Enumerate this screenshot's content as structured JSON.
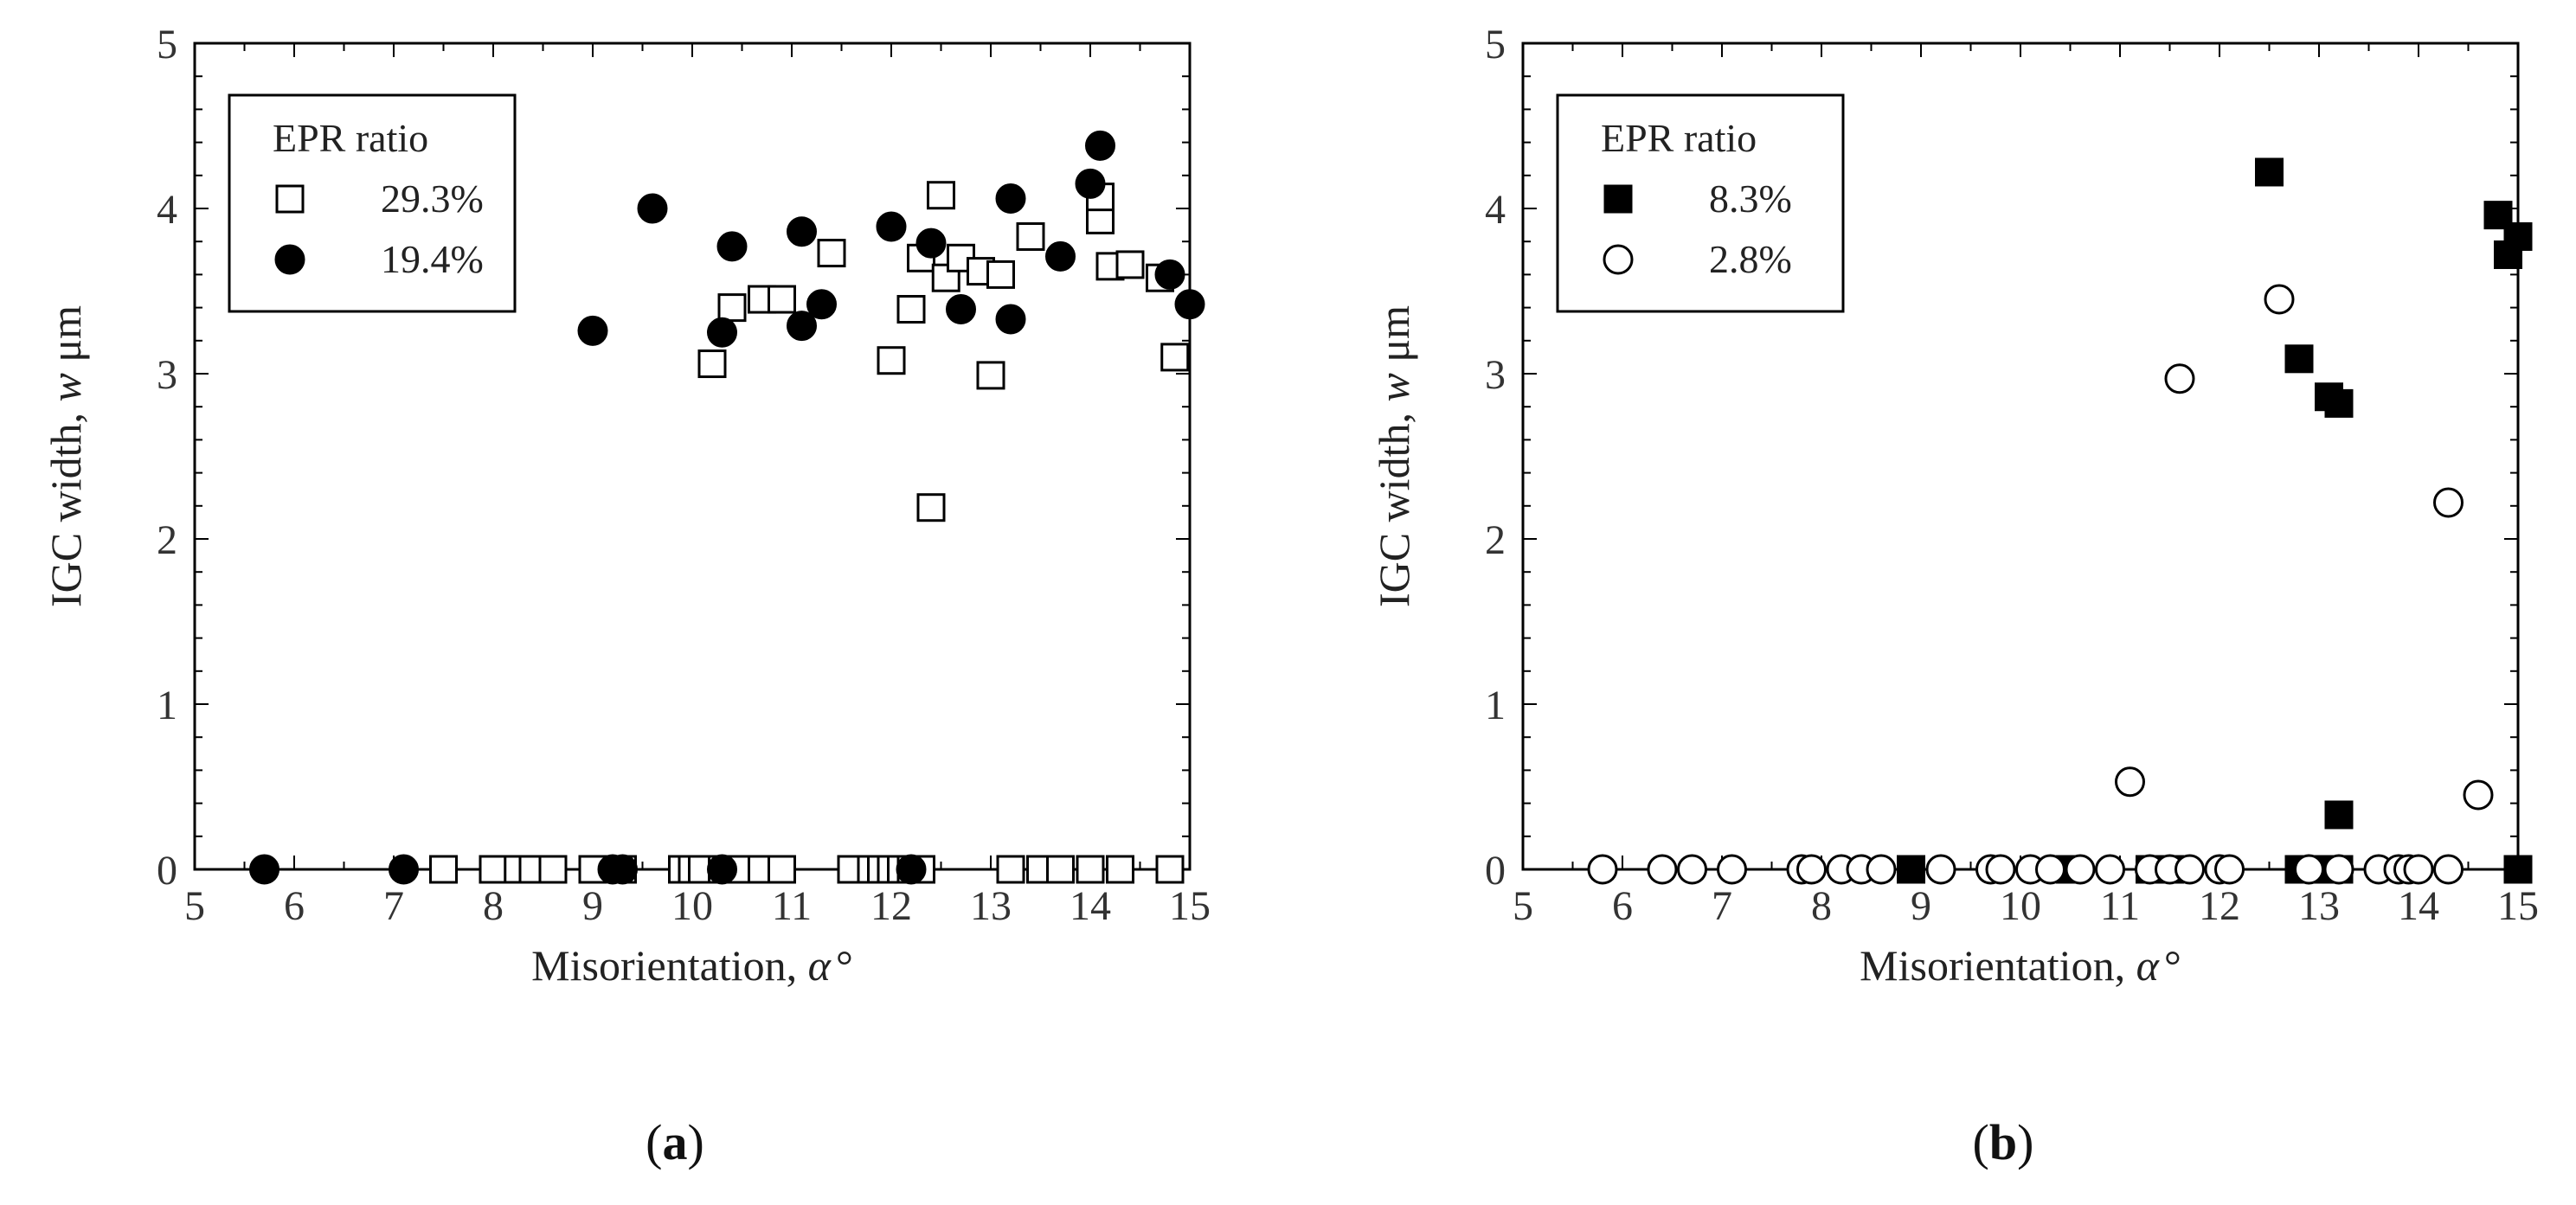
{
  "chart_data": [
    {
      "type": "scatter",
      "panel_label": "a",
      "xlabel_prefix": "Misorientation, ",
      "xlabel_symbol": "α",
      "xlabel_suffix": "°",
      "ylabel_prefix": "IGC width, ",
      "ylabel_symbol": "w",
      "ylabel_suffix": " μm",
      "xlim": [
        5,
        15
      ],
      "ylim": [
        0,
        5
      ],
      "xticks": [
        5,
        6,
        7,
        8,
        9,
        10,
        11,
        12,
        13,
        14,
        15
      ],
      "yticks": [
        0,
        1,
        2,
        3,
        4,
        5
      ],
      "legend_title": "EPR ratio",
      "legend_position": "top-left",
      "series": [
        {
          "name": "29.3%",
          "marker": "square-open",
          "x": [
            7.5,
            8.0,
            8.25,
            8.4,
            8.6,
            9.0,
            9.3,
            9.9,
            10.0,
            10.1,
            10.3,
            10.5,
            10.7,
            10.9,
            11.6,
            11.8,
            11.9,
            12.0,
            12.1,
            12.2,
            12.3,
            13.2,
            13.5,
            13.7,
            14.0,
            14.3,
            14.8,
            10.2,
            10.4,
            10.7,
            10.9,
            11.4,
            12.0,
            12.2,
            12.3,
            12.4,
            12.5,
            12.55,
            12.7,
            12.9,
            13.0,
            13.1,
            13.4,
            14.1,
            14.1,
            14.2,
            14.4,
            14.7,
            14.85
          ],
          "y": [
            0,
            0,
            0,
            0,
            0,
            0,
            0,
            0,
            0,
            0,
            0,
            0,
            0,
            0,
            0,
            0,
            0,
            0,
            0,
            0,
            0,
            0,
            0,
            0,
            0,
            0,
            0,
            3.06,
            3.4,
            3.45,
            3.45,
            3.73,
            3.08,
            3.39,
            3.7,
            2.19,
            4.08,
            3.58,
            3.7,
            3.62,
            2.99,
            3.6,
            3.83,
            3.93,
            4.07,
            3.65,
            3.66,
            3.58,
            3.1
          ]
        },
        {
          "name": "19.4%",
          "marker": "circle-filled",
          "x": [
            5.7,
            7.1,
            9.2,
            9.3,
            10.3,
            12.2,
            9.0,
            9.6,
            10.3,
            10.4,
            11.1,
            11.1,
            11.3,
            12.0,
            12.4,
            12.7,
            13.2,
            13.2,
            13.7,
            14.0,
            14.1,
            14.8,
            15.0
          ],
          "y": [
            0,
            0,
            0,
            0,
            0,
            0,
            3.26,
            4.0,
            3.25,
            3.77,
            3.29,
            3.86,
            3.42,
            3.89,
            3.79,
            3.39,
            3.33,
            4.06,
            3.71,
            4.15,
            4.38,
            3.6,
            3.42
          ]
        }
      ]
    },
    {
      "type": "scatter",
      "panel_label": "b",
      "xlabel_prefix": "Misorientation, ",
      "xlabel_symbol": "α",
      "xlabel_suffix": "°",
      "ylabel_prefix": "IGC width, ",
      "ylabel_symbol": "w",
      "ylabel_suffix": " μm",
      "xlim": [
        5,
        15
      ],
      "ylim": [
        0,
        5
      ],
      "xticks": [
        5,
        6,
        7,
        8,
        9,
        10,
        11,
        12,
        13,
        14,
        15
      ],
      "yticks": [
        0,
        1,
        2,
        3,
        4,
        5
      ],
      "legend_title": "EPR ratio",
      "legend_position": "top-left",
      "series": [
        {
          "name": "8.3%",
          "marker": "square-filled",
          "x": [
            8.9,
            10.5,
            11.3,
            11.5,
            12.8,
            13.0,
            13.2,
            15.0,
            12.5,
            12.8,
            13.1,
            13.2,
            13.2,
            14.8,
            14.9,
            15.0
          ],
          "y": [
            0,
            0,
            0,
            0,
            0,
            0,
            0,
            0,
            4.22,
            3.09,
            2.86,
            2.82,
            0.33,
            3.96,
            3.72,
            3.83
          ],
          "note": "filled squares"
        },
        {
          "name": "2.8%",
          "marker": "circle-open",
          "x": [
            5.8,
            6.4,
            6.7,
            7.1,
            7.8,
            7.9,
            8.2,
            8.4,
            8.6,
            9.2,
            9.7,
            9.8,
            10.1,
            10.3,
            10.6,
            10.9,
            11.3,
            11.5,
            11.7,
            12.0,
            12.1,
            12.9,
            13.2,
            13.6,
            13.8,
            13.9,
            14.0,
            14.3,
            11.1,
            11.6,
            12.6,
            14.3,
            14.6
          ],
          "y": [
            0,
            0,
            0,
            0,
            0,
            0,
            0,
            0,
            0,
            0,
            0,
            0,
            0,
            0,
            0,
            0,
            0,
            0,
            0,
            0,
            0,
            0,
            0,
            0,
            0,
            0,
            0,
            0,
            0.53,
            2.97,
            3.45,
            2.22,
            0.45
          ]
        }
      ]
    }
  ]
}
